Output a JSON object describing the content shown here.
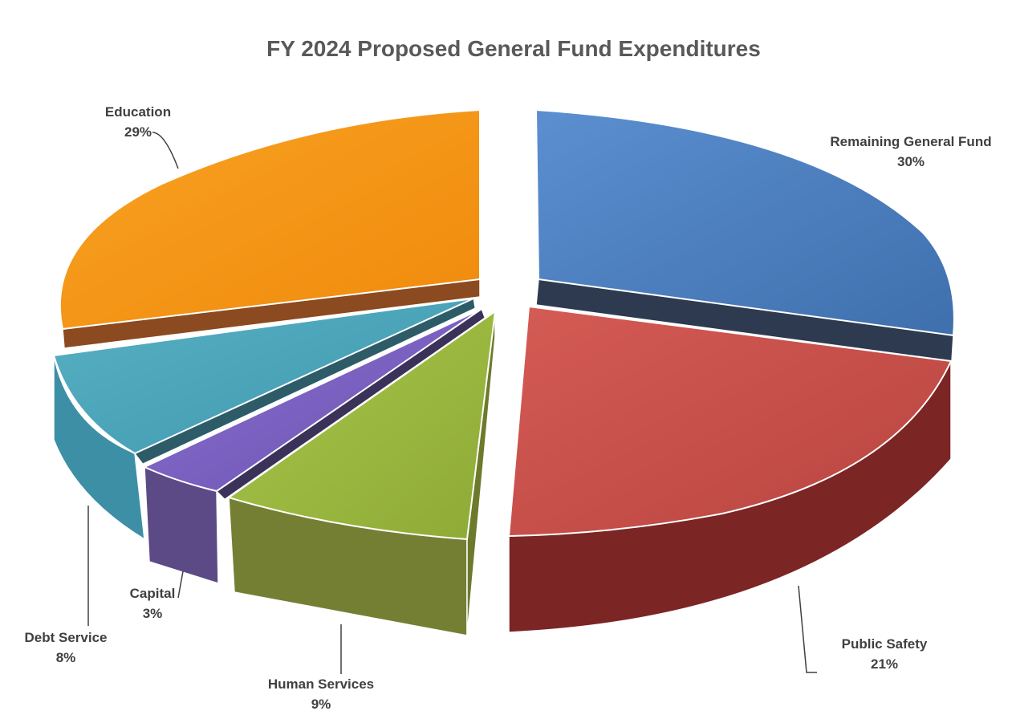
{
  "chart_data": {
    "type": "pie",
    "title": "FY 2024 Proposed General Fund Expenditures",
    "slices": [
      {
        "name": "Remaining General Fund",
        "value": 30,
        "label": "30%",
        "color": "#4f81bd"
      },
      {
        "name": "Public Safety",
        "value": 21,
        "label": "21%",
        "color": "#c0504d"
      },
      {
        "name": "Human Services",
        "value": 9,
        "label": "9%",
        "color": "#9bbb59"
      },
      {
        "name": "Capital",
        "value": 3,
        "label": "3%",
        "color": "#8064a2"
      },
      {
        "name": "Debt Service",
        "value": 8,
        "label": "8%",
        "color": "#4bacc6"
      },
      {
        "name": "Education",
        "value": 29,
        "label": "29%",
        "color": "#f79646"
      }
    ],
    "exploded": true,
    "three_d": true,
    "legend": "none"
  }
}
